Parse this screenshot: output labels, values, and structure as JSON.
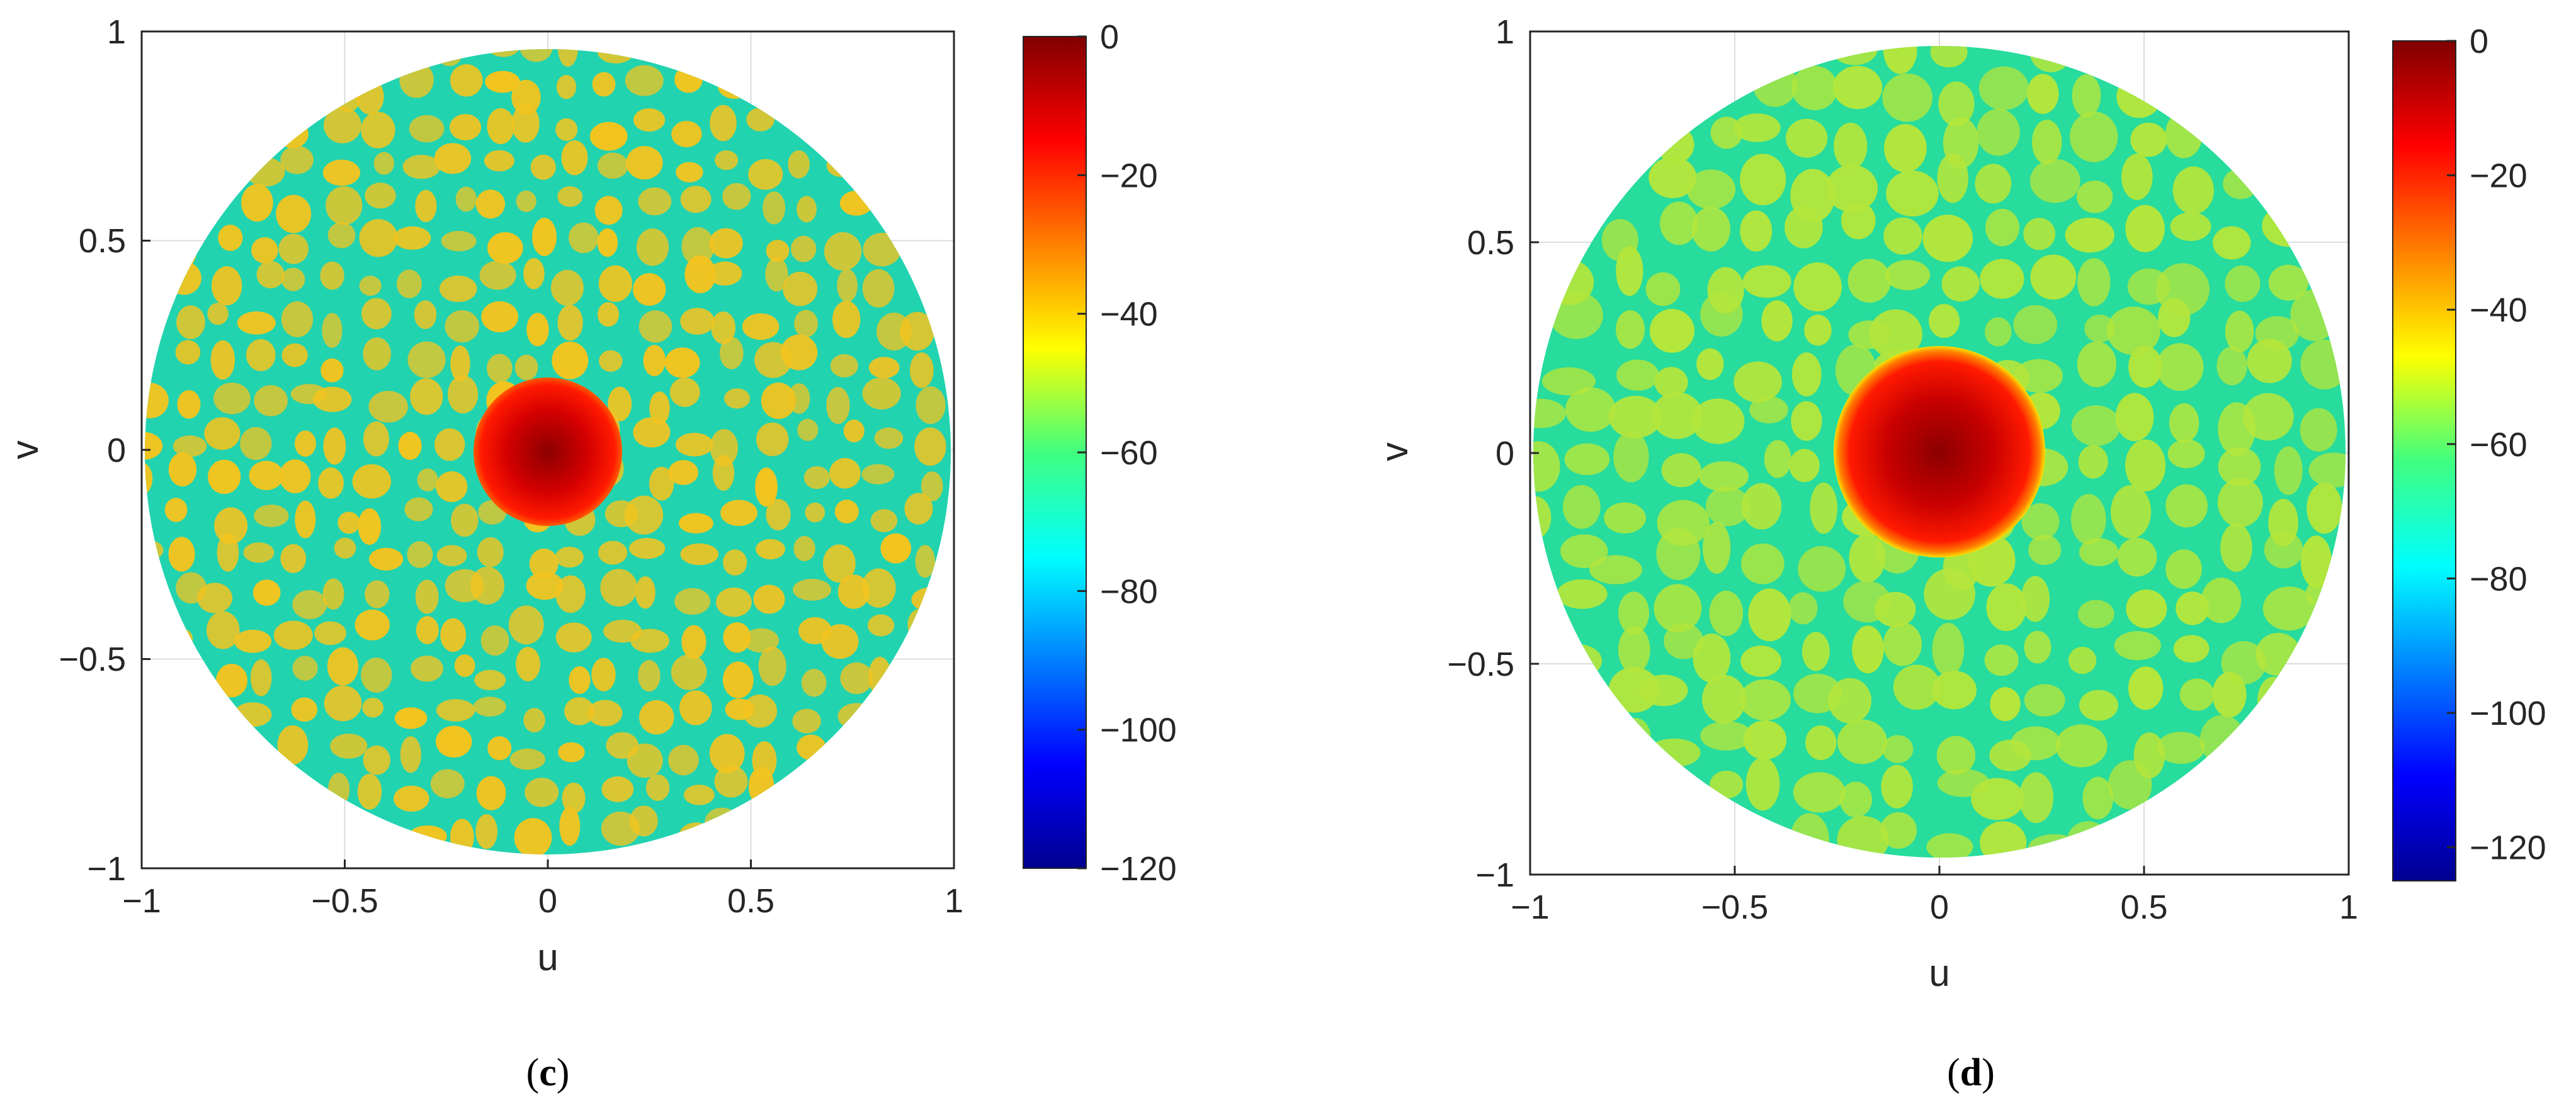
{
  "chart_data": [
    {
      "type": "heatmap",
      "panel": "c",
      "caption": {
        "open": "(",
        "letter": "c",
        "close": ")"
      },
      "xlabel": "u",
      "ylabel": "v",
      "xlim": [
        -1,
        1
      ],
      "ylim": [
        -1,
        1
      ],
      "xticks": [
        "−1",
        "−0.5",
        "0",
        "0.5",
        "1"
      ],
      "yticks": [
        "1",
        "0.5",
        "0",
        "−0.5",
        "−1"
      ],
      "grid": true,
      "region": "unit circle u²+v² ≤ 1",
      "colormap": "jet",
      "colorbar": {
        "range": [
          -120,
          0
        ],
        "ticks": [
          "0",
          "−20",
          "−40",
          "−60",
          "−80",
          "−100",
          "−120"
        ]
      },
      "main_lobe": {
        "center": [
          0,
          0
        ],
        "peak": 0,
        "radius": 0.17
      },
      "sidelobe_level": -35,
      "colors": {
        "main_lobe": "#8b0000",
        "sidelobe": "#f2c420",
        "null": "#22d3b0"
      }
    },
    {
      "type": "heatmap",
      "panel": "d",
      "caption": {
        "open": "(",
        "letter": "d",
        "close": ")"
      },
      "xlabel": "u",
      "ylabel": "v",
      "xlim": [
        -1,
        1
      ],
      "ylim": [
        -1,
        1
      ],
      "xticks": [
        "−1",
        "−0.5",
        "0",
        "0.5",
        "1"
      ],
      "yticks": [
        "1",
        "0.5",
        "0",
        "−0.5",
        "−1"
      ],
      "grid": true,
      "region": "unit circle u²+v² ≤ 1",
      "colormap": "jet",
      "colorbar": {
        "range": [
          -125,
          0
        ],
        "ticks": [
          "0",
          "−20",
          "−40",
          "−60",
          "−80",
          "−100",
          "−120"
        ]
      },
      "main_lobe": {
        "center": [
          0,
          0
        ],
        "peak": 0,
        "radius": 0.25
      },
      "sidelobe_level": -48,
      "colors": {
        "main_lobe": "#8b0000",
        "sidelobe": "#b4e63c",
        "null": "#20d8c8"
      }
    }
  ]
}
